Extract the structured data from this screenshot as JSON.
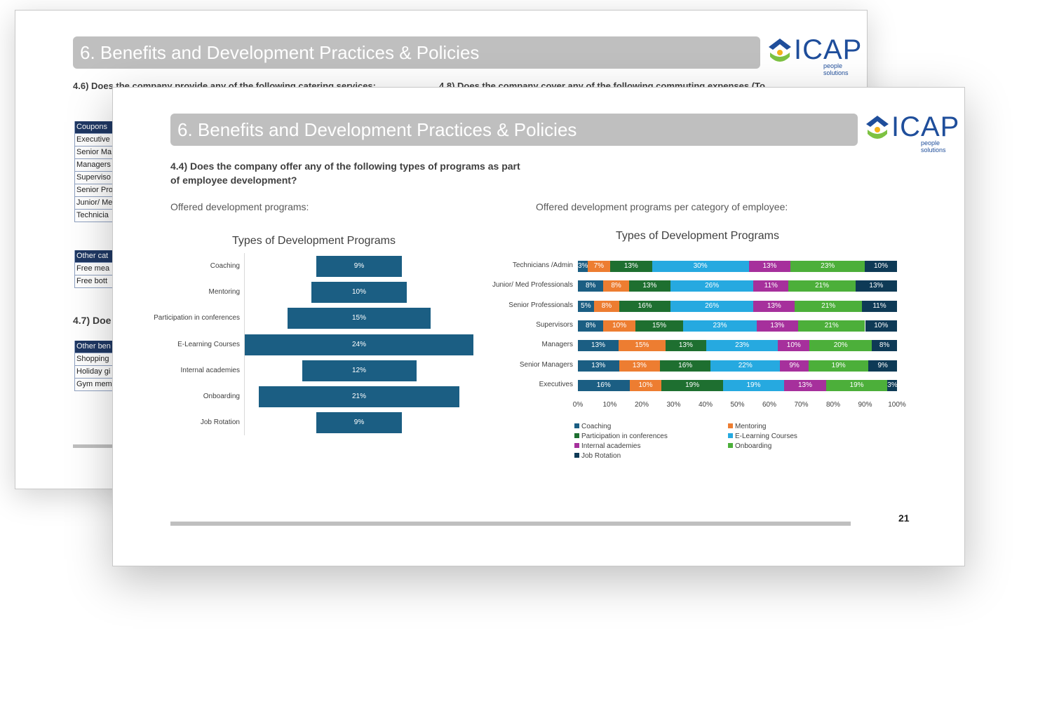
{
  "page_title": "6. Benefits and Development Practices & Policies",
  "logo": {
    "text": "ICAP",
    "subtitle": "people solutions"
  },
  "back_slide": {
    "q_catering": "4.6)  Does the company provide any of the following catering services:",
    "q_commuting": "4.8) Does the company cover any of the following commuting expenses (To",
    "q_47": "4.7) Doe",
    "table1": [
      "Coupons",
      "Executive",
      "Senior Ma",
      "Managers",
      "Superviso",
      "Senior Pro",
      "Junior/ Me",
      "Technicia"
    ],
    "table2": [
      "Other cat",
      "Free mea",
      "Free bott"
    ],
    "table3": [
      "Other ben",
      "Shopping",
      "Holiday gi",
      "Gym mem"
    ]
  },
  "front_slide": {
    "question": "4.4) Does the company offer any of the following types of programs as part of employee development?",
    "left_label": "Offered development programs:",
    "right_label": "Offered development programs per category of employee:",
    "page_number": "21"
  },
  "colors": {
    "Coaching": "#1b5e83",
    "Mentoring": "#ed7d31",
    "Participation in conferences": "#1e6f30",
    "E-Learning Courses": "#26a9e0",
    "Internal academies": "#a6309c",
    "Onboarding": "#4caf3a",
    "Job Rotation": "#0e3a56"
  },
  "chart_data": [
    {
      "type": "bar",
      "title": "Types of Development Programs",
      "categories": [
        "Coaching",
        "Mentoring",
        "Participation in conferences",
        "E-Learning Courses",
        "Internal academies",
        "Onboarding",
        "Job Rotation"
      ],
      "values": [
        9,
        10,
        15,
        24,
        12,
        21,
        9
      ],
      "labels": [
        "9%",
        "10%",
        "15%",
        "24%",
        "12%",
        "21%",
        "9%"
      ],
      "unit": "%"
    },
    {
      "type": "bar",
      "title": "Types of Development Programs",
      "stacked": true,
      "orientation": "horizontal",
      "categories": [
        "Technicians /Admin",
        "Junior/ Med Professionals",
        "Senior Professionals",
        "Supervisors",
        "Managers",
        "Senior Managers",
        "Executives"
      ],
      "series": [
        {
          "name": "Coaching",
          "values": [
            3,
            8,
            5,
            8,
            13,
            13,
            16
          ]
        },
        {
          "name": "Mentoring",
          "values": [
            7,
            8,
            8,
            10,
            15,
            13,
            10
          ]
        },
        {
          "name": "Participation in conferences",
          "values": [
            13,
            13,
            16,
            15,
            13,
            16,
            19
          ]
        },
        {
          "name": "E-Learning Courses",
          "values": [
            30,
            26,
            26,
            23,
            23,
            22,
            19
          ]
        },
        {
          "name": "Internal academies",
          "values": [
            13,
            11,
            13,
            13,
            10,
            9,
            13
          ]
        },
        {
          "name": "Onboarding",
          "values": [
            23,
            21,
            21,
            21,
            20,
            19,
            19
          ]
        },
        {
          "name": "Job Rotation",
          "values": [
            10,
            13,
            11,
            10,
            8,
            9,
            3
          ]
        }
      ],
      "xlim": [
        0,
        100
      ],
      "xticks": [
        "0%",
        "10%",
        "20%",
        "30%",
        "40%",
        "50%",
        "60%",
        "70%",
        "80%",
        "90%",
        "100%"
      ],
      "legend_position": "bottom-left"
    }
  ]
}
